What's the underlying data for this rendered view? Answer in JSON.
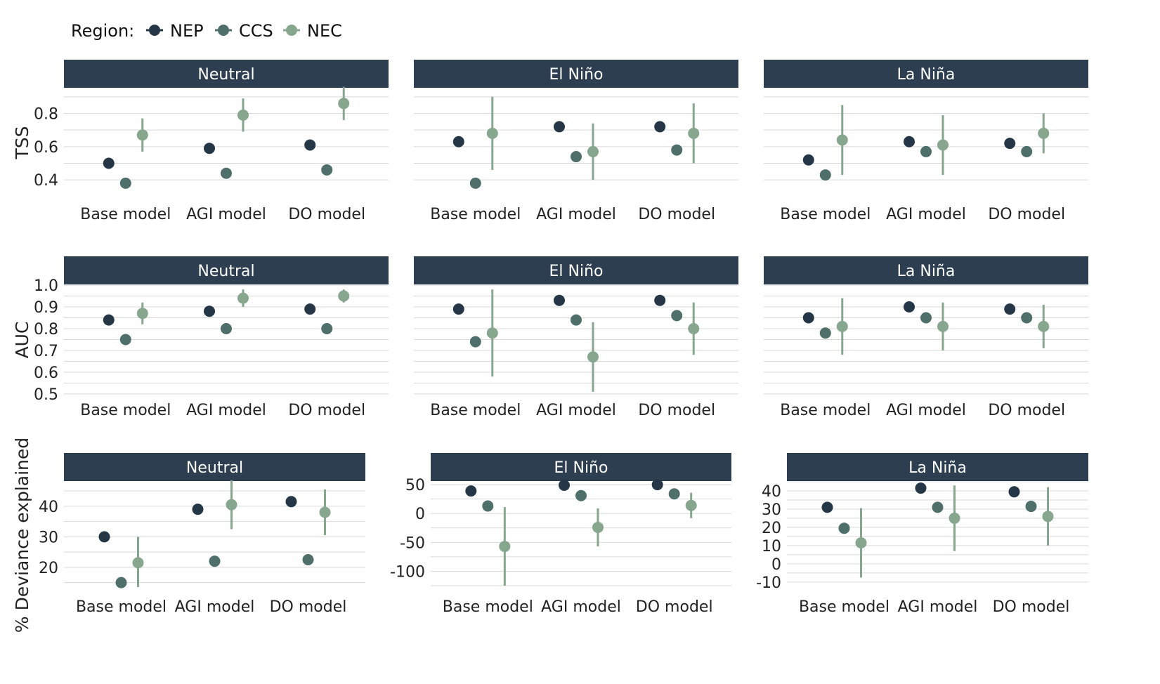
{
  "legend": {
    "title": "Region:",
    "entries": [
      {
        "name": "NEP",
        "color": "#253746"
      },
      {
        "name": "CCS",
        "color": "#4f6f6a"
      },
      {
        "name": "NEC",
        "color": "#87a68e"
      }
    ]
  },
  "colors": {
    "strip": "#2c3e50",
    "grid": "#d9d9d9"
  },
  "chart_data": [
    {
      "type": "scatter",
      "metric": "TSS",
      "ylabel": "TSS",
      "categories": [
        "Base model",
        "AGI model",
        "DO model"
      ],
      "series_order": [
        "NEP",
        "CCS",
        "NEC"
      ],
      "panels": [
        {
          "title": "Neutral",
          "ylim": [
            0.35,
            0.95
          ],
          "yticks": [
            0.4,
            0.6,
            0.8
          ],
          "yticklabels": [
            "0.4",
            "0.6",
            "0.8"
          ],
          "values": {
            "NEP": [
              0.5,
              0.59,
              0.61
            ],
            "CCS": [
              0.38,
              0.44,
              0.46
            ],
            "NEC": [
              0.67,
              0.79,
              0.86
            ]
          },
          "errors": {
            "NEP": [
              0,
              0,
              0
            ],
            "CCS": [
              0,
              0,
              0
            ],
            "NEC": [
              0.1,
              0.1,
              0.1
            ]
          }
        },
        {
          "title": "El Niño",
          "ylim": [
            0.35,
            0.95
          ],
          "yticks": [
            0.4,
            0.6,
            0.8
          ],
          "yticklabels": [
            "",
            "",
            ""
          ],
          "values": {
            "NEP": [
              0.63,
              0.72,
              0.72
            ],
            "CCS": [
              0.38,
              0.54,
              0.58
            ],
            "NEC": [
              0.68,
              0.57,
              0.68
            ]
          },
          "errors": {
            "NEP": [
              0,
              0,
              0
            ],
            "CCS": [
              0,
              0,
              0
            ],
            "NEC": [
              0.22,
              0.17,
              0.18
            ]
          }
        },
        {
          "title": "La Niña",
          "ylim": [
            0.35,
            0.95
          ],
          "yticks": [
            0.4,
            0.6,
            0.8
          ],
          "yticklabels": [
            "",
            "",
            ""
          ],
          "values": {
            "NEP": [
              0.52,
              0.63,
              0.62
            ],
            "CCS": [
              0.43,
              0.57,
              0.57
            ],
            "NEC": [
              0.64,
              0.61,
              0.68
            ]
          },
          "errors": {
            "NEP": [
              0,
              0,
              0
            ],
            "CCS": [
              0,
              0,
              0
            ],
            "NEC": [
              0.21,
              0.18,
              0.12
            ]
          }
        }
      ]
    },
    {
      "type": "scatter",
      "metric": "AUC",
      "ylabel": "AUC",
      "categories": [
        "Base model",
        "AGI model",
        "DO model"
      ],
      "series_order": [
        "NEP",
        "CCS",
        "NEC"
      ],
      "panels": [
        {
          "title": "Neutral",
          "ylim": [
            0.5,
            1.0
          ],
          "yticks": [
            0.5,
            0.6,
            0.7,
            0.8,
            0.9,
            1.0
          ],
          "yticklabels": [
            "0.5",
            "0.6",
            "0.7",
            "0.8",
            "0.9",
            "1.0"
          ],
          "values": {
            "NEP": [
              0.84,
              0.88,
              0.89
            ],
            "CCS": [
              0.75,
              0.8,
              0.8
            ],
            "NEC": [
              0.87,
              0.94,
              0.95
            ]
          },
          "errors": {
            "NEP": [
              0,
              0,
              0
            ],
            "CCS": [
              0,
              0,
              0
            ],
            "NEC": [
              0.05,
              0.04,
              0.03
            ]
          }
        },
        {
          "title": "El Niño",
          "ylim": [
            0.5,
            1.0
          ],
          "yticks": [
            0.5,
            0.6,
            0.7,
            0.8,
            0.9,
            1.0
          ],
          "yticklabels": [
            "",
            "",
            "",
            "",
            "",
            ""
          ],
          "values": {
            "NEP": [
              0.89,
              0.93,
              0.93
            ],
            "CCS": [
              0.74,
              0.84,
              0.86
            ],
            "NEC": [
              0.78,
              0.67,
              0.8
            ]
          },
          "errors": {
            "NEP": [
              0,
              0,
              0
            ],
            "CCS": [
              0,
              0,
              0
            ],
            "NEC": [
              0.2,
              0.16,
              0.12
            ]
          }
        },
        {
          "title": "La Niña",
          "ylim": [
            0.5,
            1.0
          ],
          "yticks": [
            0.5,
            0.6,
            0.7,
            0.8,
            0.9,
            1.0
          ],
          "yticklabels": [
            "",
            "",
            "",
            "",
            "",
            ""
          ],
          "values": {
            "NEP": [
              0.85,
              0.9,
              0.89
            ],
            "CCS": [
              0.78,
              0.85,
              0.85
            ],
            "NEC": [
              0.81,
              0.81,
              0.81
            ]
          },
          "errors": {
            "NEP": [
              0,
              0,
              0
            ],
            "CCS": [
              0,
              0,
              0
            ],
            "NEC": [
              0.13,
              0.11,
              0.1
            ]
          }
        }
      ]
    },
    {
      "type": "scatter",
      "metric": "% Deviance explained",
      "ylabel": "% Deviance explained",
      "categories": [
        "Base model",
        "AGI model",
        "DO model"
      ],
      "series_order": [
        "NEP",
        "CCS",
        "NEC"
      ],
      "panels": [
        {
          "title": "Neutral",
          "ylim": [
            14,
            48
          ],
          "yticks": [
            20,
            30,
            40
          ],
          "yticklabels": [
            "20",
            "30",
            "40"
          ],
          "values": {
            "NEP": [
              30,
              39,
              41.5
            ],
            "CCS": [
              15,
              22,
              22.5
            ],
            "NEC": [
              21.5,
              40.5,
              38
            ]
          },
          "errors": {
            "NEP": [
              0,
              0,
              0
            ],
            "CCS": [
              0,
              0,
              0
            ],
            "NEC": [
              8.5,
              8,
              7.5
            ]
          }
        },
        {
          "title": "El Niño",
          "ylim": [
            -125,
            55
          ],
          "yticks": [
            -100,
            -50,
            0,
            50
          ],
          "yticklabels": [
            "-100",
            "-50",
            "0",
            "50"
          ],
          "values": {
            "NEP": [
              39,
              49,
              50
            ],
            "CCS": [
              13,
              31,
              34
            ],
            "NEC": [
              -57,
              -24,
              14
            ]
          },
          "errors": {
            "NEP": [
              0,
              0,
              0
            ],
            "CCS": [
              0,
              0,
              0
            ],
            "NEC": [
              68,
              33,
              22
            ]
          }
        },
        {
          "title": "La Niña",
          "ylim": [
            -12,
            45
          ],
          "yticks": [
            -10,
            0,
            10,
            20,
            30,
            40
          ],
          "yticklabels": [
            "-10",
            "0",
            "10",
            "20",
            "30",
            "40"
          ],
          "values": {
            "NEP": [
              31,
              41.5,
              39.5
            ],
            "CCS": [
              19.5,
              31,
              31.5
            ],
            "NEC": [
              11.5,
              25,
              26
            ]
          },
          "errors": {
            "NEP": [
              0,
              2.5,
              2
            ],
            "CCS": [
              3,
              2,
              0
            ],
            "NEC": [
              19,
              18,
              16
            ]
          }
        }
      ]
    }
  ]
}
